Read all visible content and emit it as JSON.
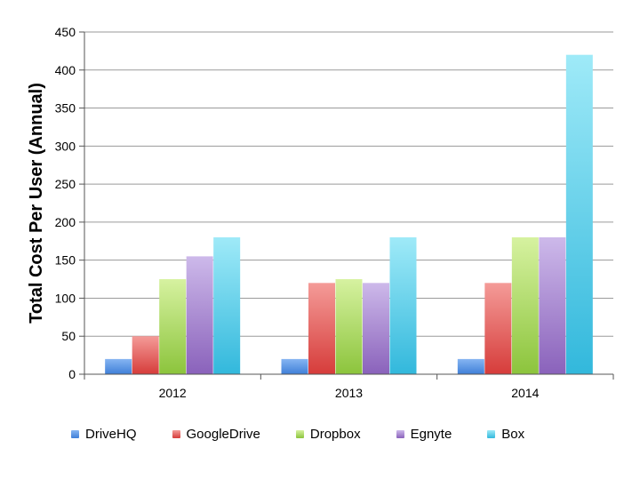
{
  "chart_data": {
    "type": "bar",
    "categories": [
      "2012",
      "2013",
      "2014"
    ],
    "series": [
      {
        "name": "DriveHQ",
        "values": [
          20,
          20,
          20
        ],
        "color_top": "#86b5f2",
        "color_bottom": "#3f7fd8"
      },
      {
        "name": "GoogleDrive",
        "values": [
          50,
          120,
          120
        ],
        "color_top": "#f49b98",
        "color_bottom": "#d63c3a"
      },
      {
        "name": "Dropbox",
        "values": [
          125,
          125,
          180
        ],
        "color_top": "#d6f2a0",
        "color_bottom": "#8cc43c"
      },
      {
        "name": "Egnyte",
        "values": [
          155,
          120,
          180
        ],
        "color_top": "#cdb9ea",
        "color_bottom": "#8a62bb"
      },
      {
        "name": "Box",
        "values": [
          180,
          180,
          420
        ],
        "color_top": "#9feaf8",
        "color_bottom": "#32b8dc"
      }
    ],
    "ylabel": "Total Cost Per User (Annual)",
    "xlabel": "",
    "ylim": [
      0,
      450
    ],
    "yticks": [
      "0",
      "50",
      "100",
      "150",
      "200",
      "250",
      "300",
      "350",
      "400",
      "450"
    ],
    "grid": true,
    "legend_position": "bottom"
  }
}
